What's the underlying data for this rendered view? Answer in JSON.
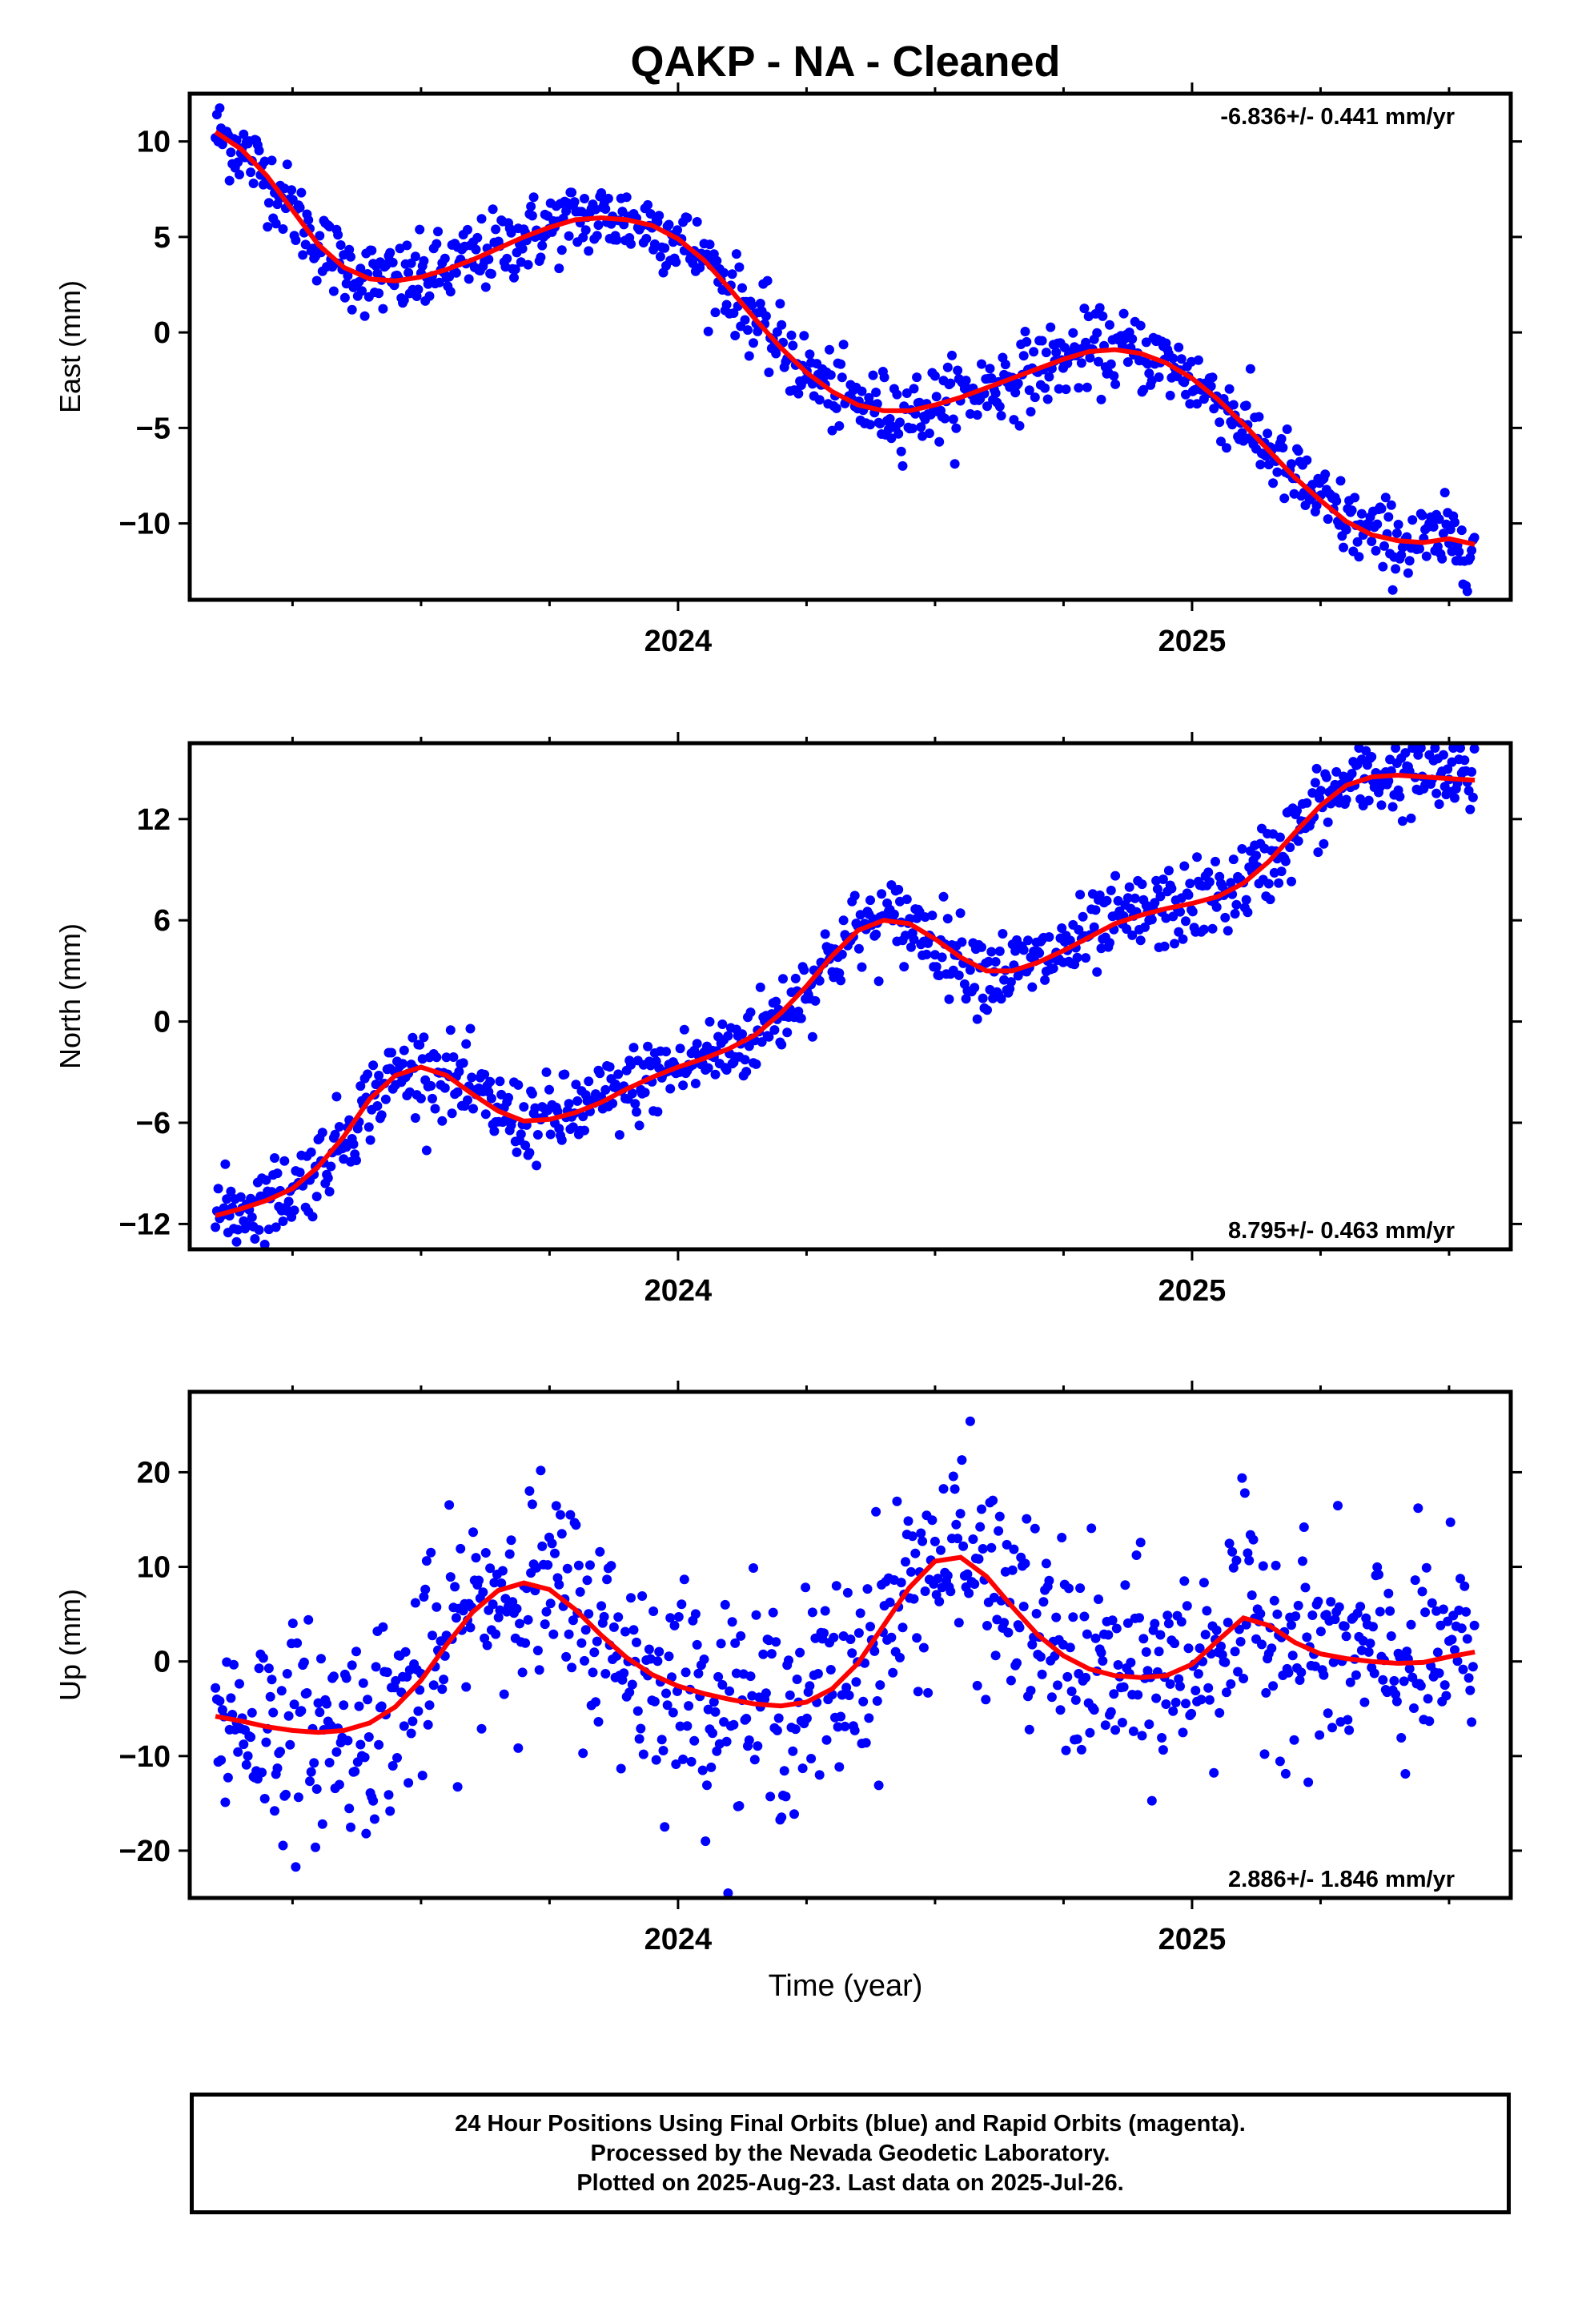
{
  "title": "QAKP  - NA - Cleaned",
  "xlabel": "Time (year)",
  "colors": {
    "points": "#0000ff",
    "model": "#ff0000",
    "frame": "#000000"
  },
  "footer": {
    "line1": "24 Hour Positions Using Final Orbits (blue) and Rapid Orbits (magenta).",
    "line2": "Processed by the Nevada Geodetic Laboratory.",
    "line3": "Plotted on 2025-Aug-23. Last data on 2025-Jul-26."
  },
  "chart_data": [
    {
      "type": "scatter",
      "ylabel": "East (mm)",
      "rate": "-6.836+/- 0.441 mm/yr",
      "rate_position": "top-right",
      "xlim": [
        2023.05,
        2025.62
      ],
      "ylim": [
        -14,
        12.5
      ],
      "yticks": [
        10,
        5,
        0,
        -5,
        -10
      ],
      "ytick_labels": [
        "10",
        "5",
        "0",
        "−5",
        "−10"
      ],
      "xticks": [
        2024,
        2025
      ],
      "xtick_labels": [
        "2024",
        "2025"
      ],
      "series": [
        {
          "role": "points",
          "x": [
            2023.1,
            2023.15,
            2023.2,
            2023.25,
            2023.3,
            2023.35,
            2023.4,
            2023.45,
            2023.5,
            2023.55,
            2023.6,
            2023.65,
            2023.7,
            2023.75,
            2023.8,
            2023.85,
            2023.9,
            2023.95,
            2024.0,
            2024.05,
            2024.1,
            2024.15,
            2024.2,
            2024.25,
            2024.3,
            2024.35,
            2024.4,
            2024.45,
            2024.5,
            2024.55,
            2024.6,
            2024.65,
            2024.7,
            2024.75,
            2024.8,
            2024.85,
            2024.9,
            2024.95,
            2025.0,
            2025.05,
            2025.1,
            2025.15,
            2025.2,
            2025.25,
            2025.3,
            2025.35,
            2025.4,
            2025.45,
            2025.5,
            2025.55
          ],
          "y": [
            10.5,
            9.6,
            8.2,
            6.4,
            4.6,
            3.4,
            2.8,
            2.7,
            2.9,
            3.3,
            3.8,
            4.4,
            5.0,
            5.5,
            5.9,
            6.0,
            5.9,
            5.6,
            4.9,
            3.8,
            2.3,
            0.7,
            -0.8,
            -2.1,
            -3.1,
            -3.8,
            -4.1,
            -4.1,
            -3.8,
            -3.4,
            -2.9,
            -2.4,
            -1.9,
            -1.4,
            -1.0,
            -0.9,
            -1.1,
            -1.6,
            -2.4,
            -3.5,
            -4.8,
            -6.2,
            -7.6,
            -8.8,
            -9.9,
            -10.6,
            -10.9,
            -11.0,
            -10.8,
            -11.1
          ]
        },
        {
          "role": "model",
          "x": [
            2023.1,
            2023.15,
            2023.2,
            2023.25,
            2023.3,
            2023.35,
            2023.4,
            2023.45,
            2023.5,
            2023.55,
            2023.6,
            2023.65,
            2023.7,
            2023.75,
            2023.8,
            2023.85,
            2023.9,
            2023.95,
            2024.0,
            2024.05,
            2024.1,
            2024.15,
            2024.2,
            2024.25,
            2024.3,
            2024.35,
            2024.4,
            2024.45,
            2024.5,
            2024.55,
            2024.6,
            2024.65,
            2024.7,
            2024.75,
            2024.8,
            2024.85,
            2024.9,
            2024.95,
            2025.0,
            2025.05,
            2025.1,
            2025.15,
            2025.2,
            2025.25,
            2025.3,
            2025.35,
            2025.4,
            2025.45,
            2025.5,
            2025.55
          ],
          "y": [
            10.5,
            9.6,
            8.2,
            6.4,
            4.6,
            3.4,
            2.8,
            2.7,
            2.9,
            3.3,
            3.8,
            4.4,
            5.0,
            5.5,
            5.9,
            6.0,
            5.9,
            5.6,
            4.9,
            3.8,
            2.3,
            0.7,
            -0.8,
            -2.1,
            -3.1,
            -3.8,
            -4.1,
            -4.1,
            -3.8,
            -3.4,
            -2.9,
            -2.4,
            -1.9,
            -1.4,
            -1.0,
            -0.9,
            -1.1,
            -1.6,
            -2.4,
            -3.5,
            -4.8,
            -6.2,
            -7.6,
            -8.8,
            -9.9,
            -10.6,
            -10.9,
            -11.0,
            -10.8,
            -11.1
          ]
        }
      ]
    },
    {
      "type": "scatter",
      "ylabel": "North (mm)",
      "rate": "8.795+/- 0.463 mm/yr",
      "rate_position": "bottom-right",
      "xlim": [
        2023.05,
        2025.62
      ],
      "ylim": [
        -13.5,
        16.5
      ],
      "yticks": [
        12,
        6,
        0,
        -6,
        -12
      ],
      "ytick_labels": [
        "12",
        "6",
        "0",
        "−6",
        "−12"
      ],
      "xticks": [
        2024,
        2025
      ],
      "xtick_labels": [
        "2024",
        "2025"
      ],
      "series": [
        {
          "role": "points",
          "x": [
            2023.1,
            2023.15,
            2023.2,
            2023.25,
            2023.3,
            2023.35,
            2023.4,
            2023.45,
            2023.5,
            2023.55,
            2023.6,
            2023.65,
            2023.7,
            2023.75,
            2023.8,
            2023.85,
            2023.9,
            2023.95,
            2024.0,
            2024.05,
            2024.1,
            2024.15,
            2024.2,
            2024.25,
            2024.3,
            2024.35,
            2024.4,
            2024.45,
            2024.5,
            2024.55,
            2024.6,
            2024.65,
            2024.7,
            2024.75,
            2024.8,
            2024.85,
            2024.9,
            2024.95,
            2025.0,
            2025.05,
            2025.1,
            2025.15,
            2025.2,
            2025.25,
            2025.3,
            2025.35,
            2025.4,
            2025.45,
            2025.5,
            2025.55
          ],
          "y": [
            -11.5,
            -11.1,
            -10.6,
            -9.9,
            -8.6,
            -6.8,
            -4.6,
            -3.2,
            -2.7,
            -3.2,
            -4.3,
            -5.3,
            -5.9,
            -5.8,
            -5.4,
            -4.8,
            -4.0,
            -3.3,
            -2.7,
            -2.2,
            -1.6,
            -0.8,
            0.5,
            2.1,
            3.9,
            5.4,
            6.0,
            5.8,
            4.9,
            3.8,
            3.0,
            3.0,
            3.5,
            4.2,
            5.0,
            5.8,
            6.3,
            6.7,
            7.0,
            7.4,
            8.2,
            9.5,
            11.2,
            12.8,
            14.0,
            14.5,
            14.6,
            14.5,
            14.4,
            14.3
          ]
        },
        {
          "role": "model",
          "x": [
            2023.1,
            2023.15,
            2023.2,
            2023.25,
            2023.3,
            2023.35,
            2023.4,
            2023.45,
            2023.5,
            2023.55,
            2023.6,
            2023.65,
            2023.7,
            2023.75,
            2023.8,
            2023.85,
            2023.9,
            2023.95,
            2024.0,
            2024.05,
            2024.1,
            2024.15,
            2024.2,
            2024.25,
            2024.3,
            2024.35,
            2024.4,
            2024.45,
            2024.5,
            2024.55,
            2024.6,
            2024.65,
            2024.7,
            2024.75,
            2024.8,
            2024.85,
            2024.9,
            2024.95,
            2025.0,
            2025.05,
            2025.1,
            2025.15,
            2025.2,
            2025.25,
            2025.3,
            2025.35,
            2025.4,
            2025.45,
            2025.5,
            2025.55
          ],
          "y": [
            -11.5,
            -11.1,
            -10.6,
            -9.9,
            -8.6,
            -6.8,
            -4.6,
            -3.2,
            -2.7,
            -3.2,
            -4.3,
            -5.3,
            -5.9,
            -5.8,
            -5.4,
            -4.8,
            -4.0,
            -3.3,
            -2.7,
            -2.2,
            -1.6,
            -0.8,
            0.5,
            2.1,
            3.9,
            5.4,
            6.0,
            5.8,
            4.9,
            3.8,
            3.0,
            3.0,
            3.5,
            4.2,
            5.0,
            5.8,
            6.3,
            6.7,
            7.0,
            7.4,
            8.2,
            9.5,
            11.2,
            12.8,
            14.0,
            14.5,
            14.6,
            14.5,
            14.4,
            14.3
          ]
        }
      ]
    },
    {
      "type": "scatter",
      "ylabel": "Up (mm)",
      "rate": "2.886+/- 1.846 mm/yr",
      "rate_position": "bottom-right",
      "xlim": [
        2023.05,
        2025.62
      ],
      "ylim": [
        -25,
        28.5
      ],
      "yticks": [
        20,
        10,
        0,
        -10,
        -20
      ],
      "ytick_labels": [
        "20",
        "10",
        "0",
        "−10",
        "−20"
      ],
      "xticks": [
        2024,
        2025
      ],
      "xtick_labels": [
        "2024",
        "2025"
      ],
      "series": [
        {
          "role": "points",
          "x": [
            2023.1,
            2023.15,
            2023.2,
            2023.25,
            2023.3,
            2023.35,
            2023.4,
            2023.45,
            2023.5,
            2023.55,
            2023.6,
            2023.65,
            2023.7,
            2023.75,
            2023.8,
            2023.85,
            2023.9,
            2023.95,
            2024.0,
            2024.05,
            2024.1,
            2024.15,
            2024.2,
            2024.25,
            2024.3,
            2024.35,
            2024.4,
            2024.45,
            2024.5,
            2024.55,
            2024.6,
            2024.65,
            2024.7,
            2024.75,
            2024.8,
            2024.85,
            2024.9,
            2024.95,
            2025.0,
            2025.05,
            2025.1,
            2025.15,
            2025.2,
            2025.25,
            2025.3,
            2025.35,
            2025.4,
            2025.45,
            2025.5,
            2025.55
          ],
          "y": [
            -5.8,
            -6.3,
            -6.9,
            -7.3,
            -7.5,
            -7.3,
            -6.5,
            -4.8,
            -2.0,
            1.8,
            5.2,
            7.5,
            8.3,
            7.6,
            5.5,
            2.8,
            0.4,
            -1.4,
            -2.6,
            -3.4,
            -4.0,
            -4.5,
            -4.7,
            -4.3,
            -2.9,
            -0.2,
            3.8,
            7.8,
            10.6,
            11.0,
            9.0,
            5.8,
            2.8,
            0.6,
            -0.8,
            -1.5,
            -1.7,
            -1.5,
            -0.3,
            2.2,
            4.6,
            3.8,
            2.0,
            0.8,
            0.3,
            0.0,
            -0.2,
            -0.1,
            0.5,
            1.0
          ]
        },
        {
          "role": "model",
          "x": [
            2023.1,
            2023.15,
            2023.2,
            2023.25,
            2023.3,
            2023.35,
            2023.4,
            2023.45,
            2023.5,
            2023.55,
            2023.6,
            2023.65,
            2023.7,
            2023.75,
            2023.8,
            2023.85,
            2023.9,
            2023.95,
            2024.0,
            2024.05,
            2024.1,
            2024.15,
            2024.2,
            2024.25,
            2024.3,
            2024.35,
            2024.4,
            2024.45,
            2024.5,
            2024.55,
            2024.6,
            2024.65,
            2024.7,
            2024.75,
            2024.8,
            2024.85,
            2024.9,
            2024.95,
            2025.0,
            2025.05,
            2025.1,
            2025.15,
            2025.2,
            2025.25,
            2025.3,
            2025.35,
            2025.4,
            2025.45,
            2025.5,
            2025.55
          ],
          "y": [
            -5.8,
            -6.3,
            -6.9,
            -7.3,
            -7.5,
            -7.3,
            -6.5,
            -4.8,
            -2.0,
            1.8,
            5.2,
            7.5,
            8.3,
            7.6,
            5.5,
            2.8,
            0.4,
            -1.4,
            -2.6,
            -3.4,
            -4.0,
            -4.5,
            -4.7,
            -4.3,
            -2.9,
            -0.2,
            3.8,
            7.8,
            10.6,
            11.0,
            9.0,
            5.8,
            2.8,
            0.6,
            -0.8,
            -1.5,
            -1.7,
            -1.5,
            -0.3,
            2.2,
            4.6,
            3.8,
            2.0,
            0.8,
            0.3,
            0.0,
            -0.2,
            -0.1,
            0.5,
            1.0
          ]
        }
      ]
    }
  ]
}
